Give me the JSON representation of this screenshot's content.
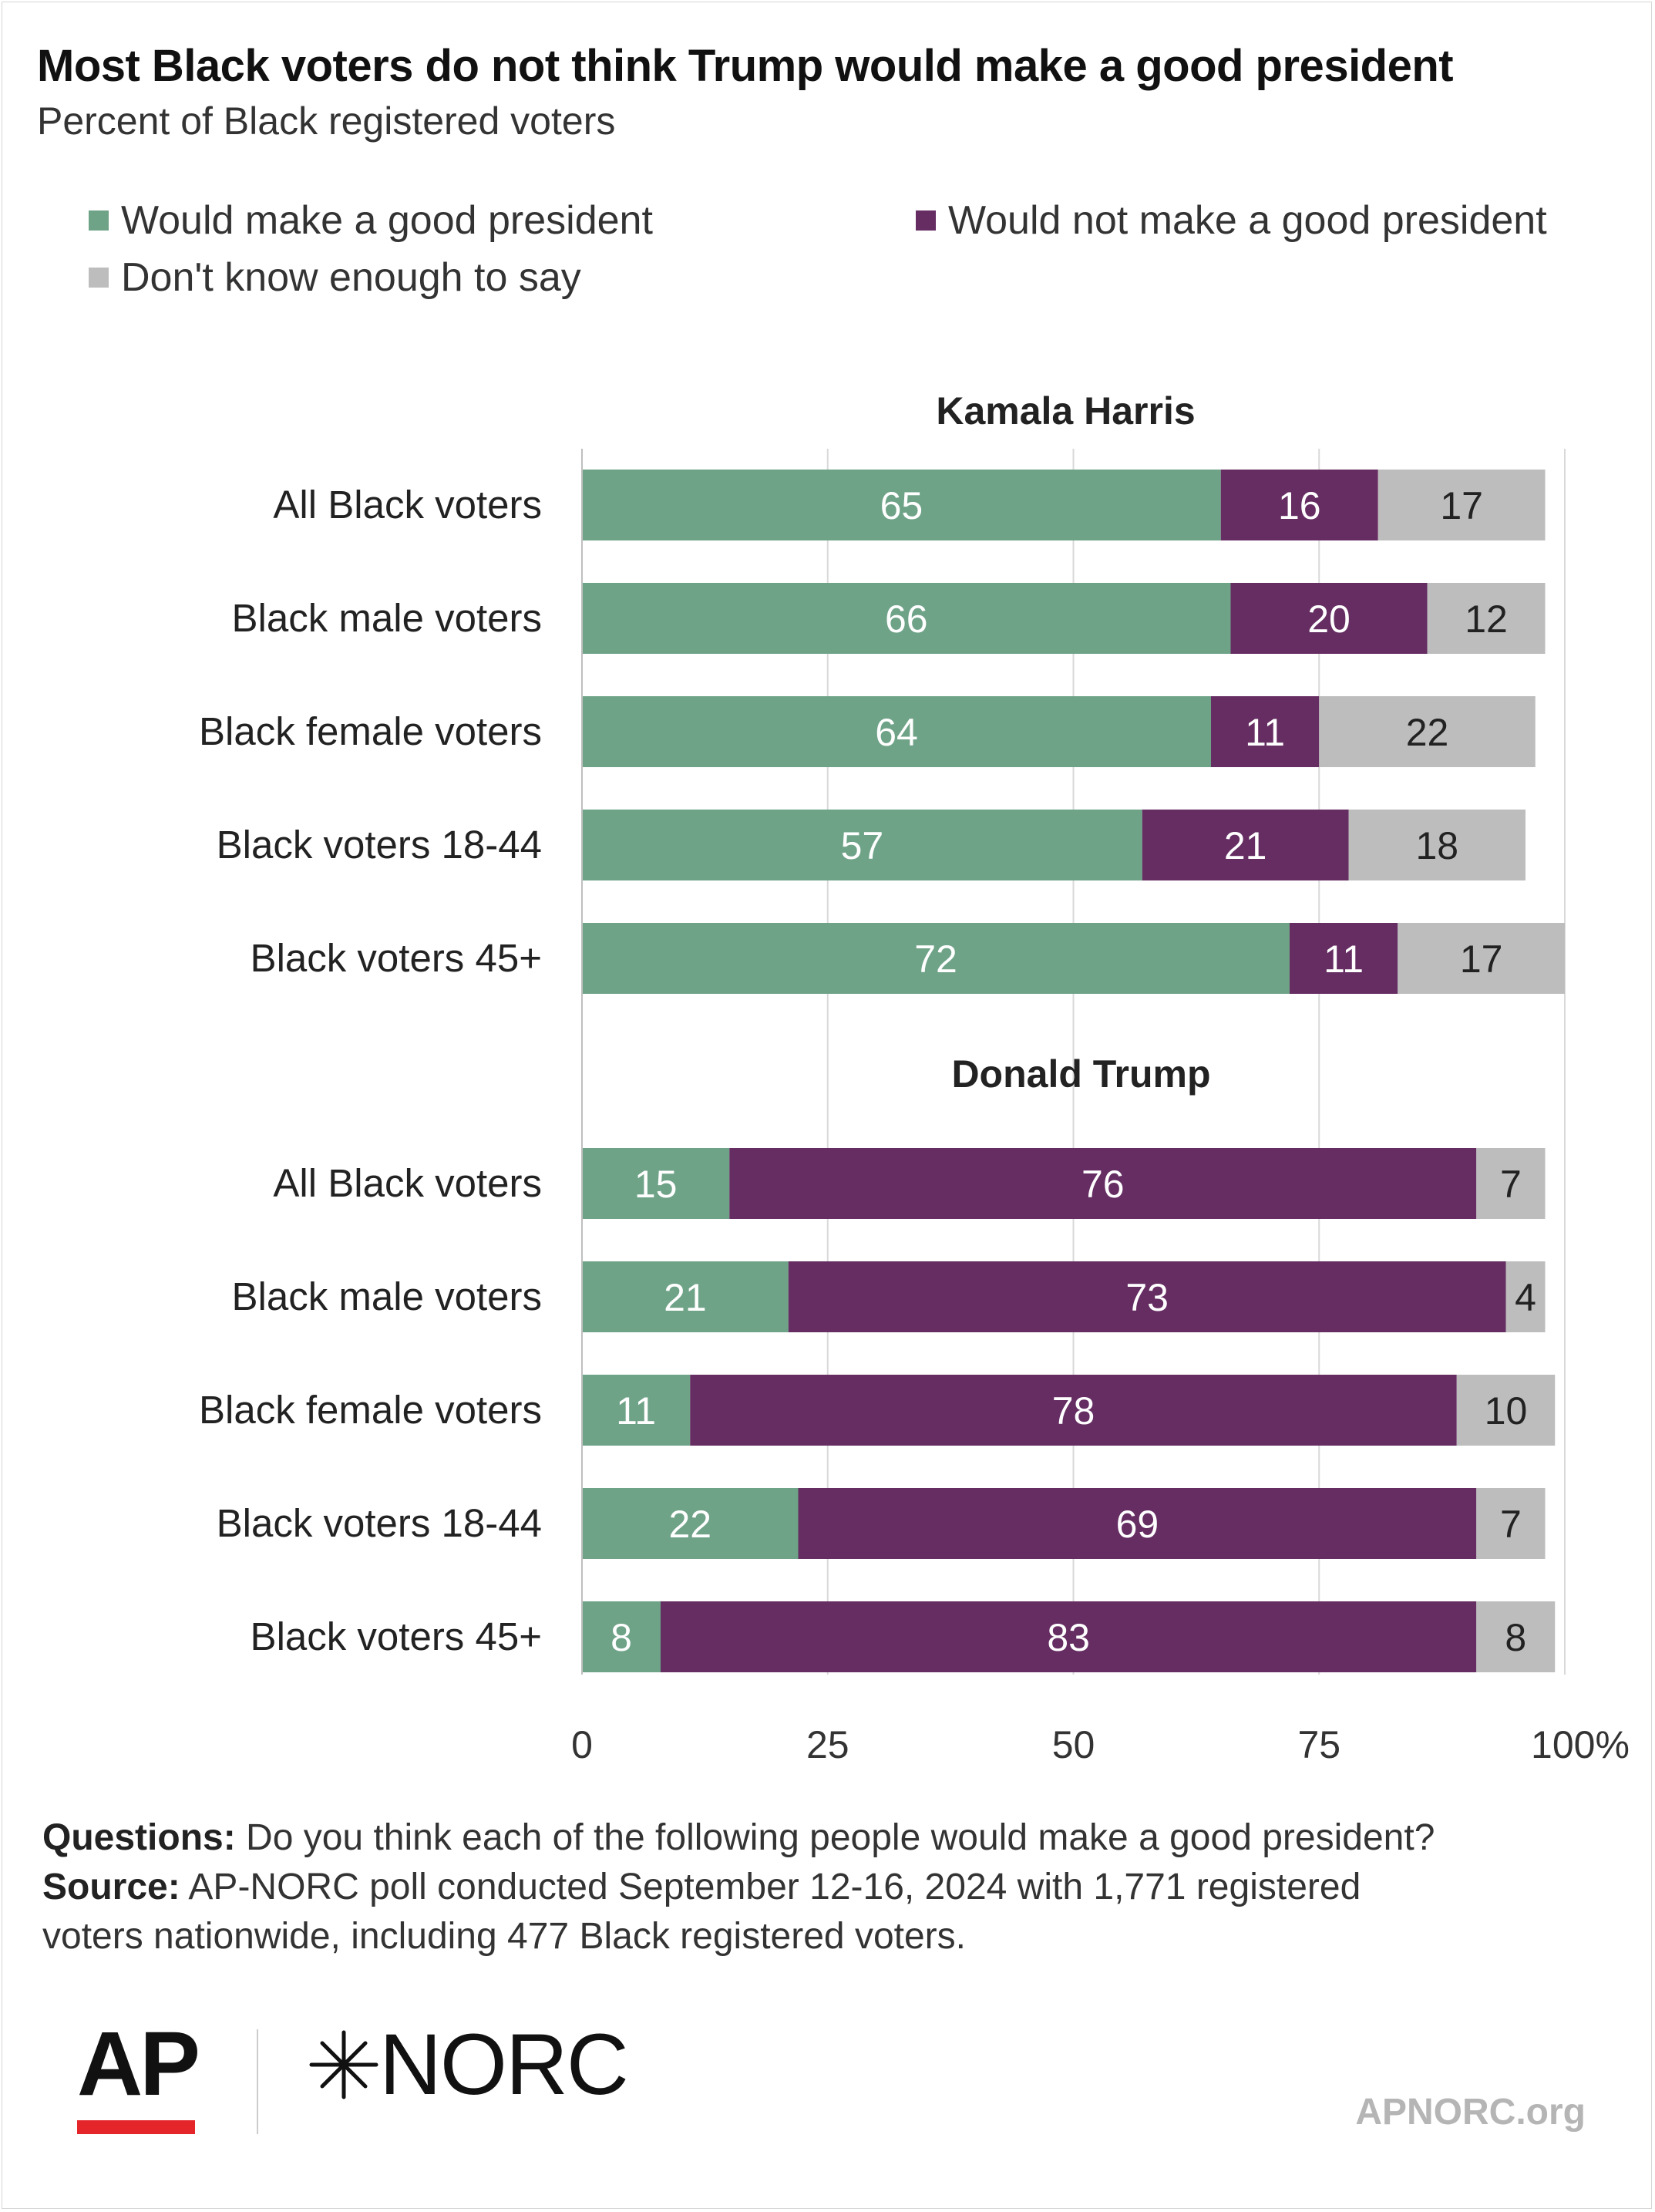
{
  "title": "Most Black voters do not think Trump would make a good president",
  "subtitle": "Percent of Black registered voters",
  "colors": {
    "good": "#6fa388",
    "not_good": "#652d62",
    "dont_know": "#bdbdbd",
    "grid": "#d9d9d9"
  },
  "legend": {
    "good": "Would make a good president",
    "not_good": "Would not make a good president",
    "dont_know": "Don't know enough to say"
  },
  "chart_data": {
    "type": "bar",
    "orientation": "horizontal",
    "stacked": true,
    "xlim": [
      0,
      100
    ],
    "xticks": [
      "0",
      "25",
      "50",
      "75",
      "100%"
    ],
    "grid": true,
    "legend_position": "top",
    "groups": [
      {
        "name": "Kamala Harris",
        "categories": [
          "All Black voters",
          "Black male voters",
          "Black female voters",
          "Black voters 18-44",
          "Black voters 45+"
        ],
        "series": [
          {
            "name": "Would make a good president",
            "values": [
              65,
              66,
              64,
              57,
              72
            ]
          },
          {
            "name": "Would not make a good president",
            "values": [
              16,
              20,
              11,
              21,
              11
            ]
          },
          {
            "name": "Don't know enough to say",
            "values": [
              17,
              12,
              22,
              18,
              17
            ]
          }
        ]
      },
      {
        "name": "Donald Trump",
        "categories": [
          "All Black voters",
          "Black male voters",
          "Black female voters",
          "Black voters 18-44",
          "Black voters 45+"
        ],
        "series": [
          {
            "name": "Would make a good president",
            "values": [
              15,
              21,
              11,
              22,
              8
            ]
          },
          {
            "name": "Would not make a good president",
            "values": [
              76,
              73,
              78,
              69,
              83
            ]
          },
          {
            "name": "Don't know enough to say",
            "values": [
              7,
              4,
              10,
              7,
              8
            ]
          }
        ]
      }
    ]
  },
  "footer": {
    "questions_label": "Questions:",
    "questions_text": "Do you think each of the following people would make a good president?",
    "source_label": "Source:",
    "source_text_1": "AP-NORC poll conducted September 12-16, 2024 with 1,771 registered",
    "source_text_2": "voters nationwide, including 477 Black registered voters."
  },
  "logos": {
    "ap": "AP",
    "norc": "NORC",
    "site": "APNORC.org"
  }
}
